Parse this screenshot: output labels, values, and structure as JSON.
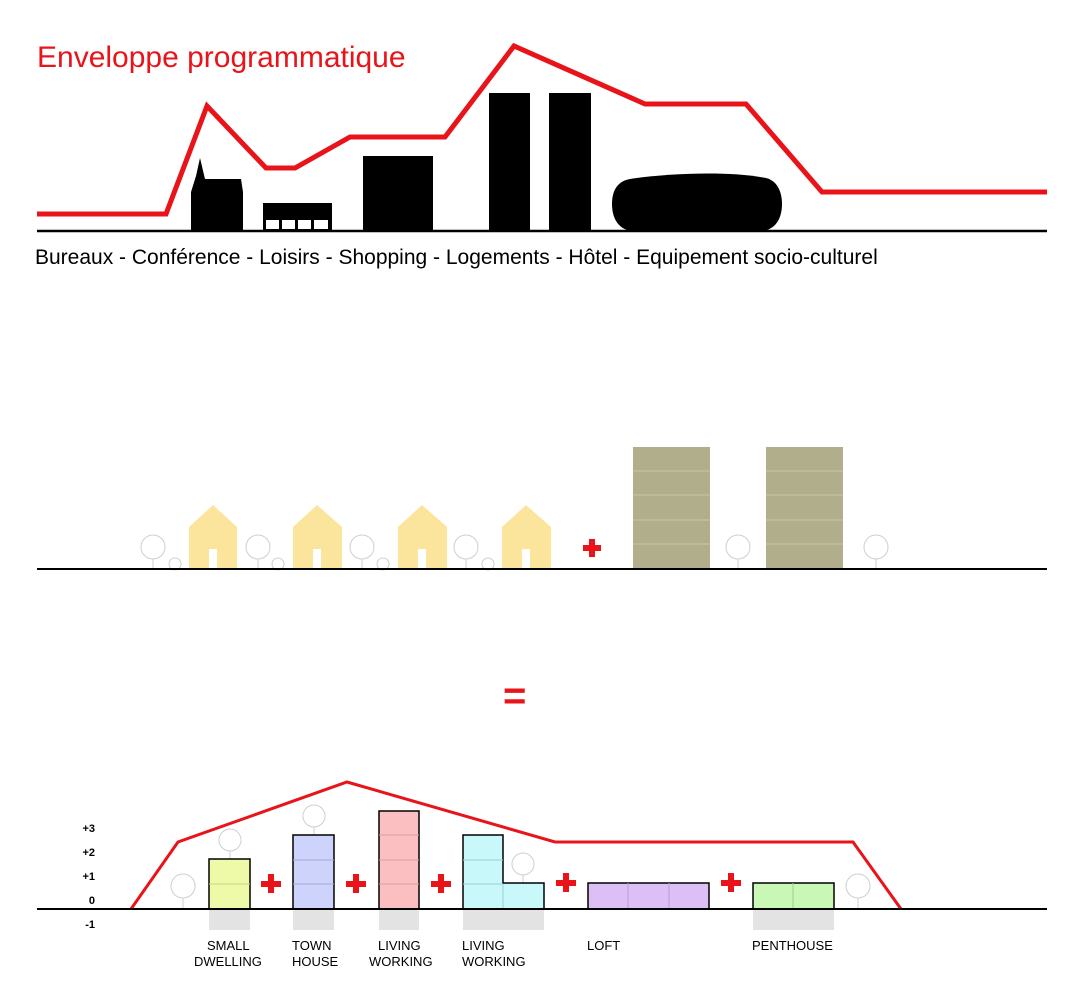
{
  "title": "Enveloppe programmatique",
  "programme_line": "Bureaux - Conférence - Loisirs - Shopping - Logements - Hôtel - Equipement socio-culturel",
  "equals_sign": "=",
  "levels": [
    "+3",
    "+2",
    "+1",
    "0",
    "-1"
  ],
  "typologies": [
    {
      "line1": "SMALL",
      "line2": "DWELLING",
      "color": "#eefaa8"
    },
    {
      "line1": "TOWN",
      "line2": "HOUSE",
      "color": "#cdd3fa"
    },
    {
      "line1": "LIVING",
      "line2": "WORKING",
      "color": "#fbbfc2"
    },
    {
      "line1": "LIVING",
      "line2": "WORKING",
      "color": "#c8f8fa"
    },
    {
      "line1": "LOFT",
      "line2": "",
      "color": "#dcc0f5"
    },
    {
      "line1": "PENTHOUSE",
      "line2": "",
      "color": "#c9f7b5"
    }
  ],
  "colors": {
    "envelope_red": "#e8141a",
    "house_yellow": "#fbe59c",
    "tower_olive": "#b0ae8b",
    "basement_grey": "#e3e3e3",
    "building_black": "#000000"
  }
}
